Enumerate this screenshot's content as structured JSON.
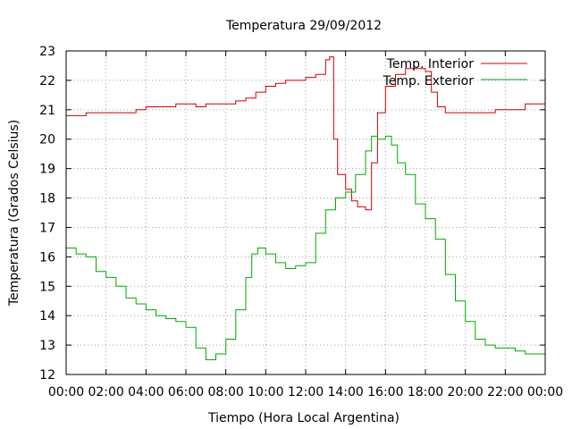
{
  "chart_data": {
    "type": "line",
    "title": "Temperatura 29/09/2012",
    "xlabel": "Tiempo (Hora Local Argentina)",
    "ylabel": "Temperatura (Grados Celsius)",
    "xlim": [
      0,
      24
    ],
    "ylim": [
      12,
      23
    ],
    "x_ticks": [
      "00:00",
      "02:00",
      "04:00",
      "06:00",
      "08:00",
      "10:00",
      "12:00",
      "14:00",
      "16:00",
      "18:00",
      "20:00",
      "22:00",
      "00:00"
    ],
    "y_ticks": [
      "12",
      "13",
      "14",
      "15",
      "16",
      "17",
      "18",
      "19",
      "20",
      "21",
      "22",
      "23"
    ],
    "grid": true,
    "legend_position": "top-right",
    "series": [
      {
        "name": "Temp. Interior",
        "color": "#cc0000",
        "x": [
          0,
          0.5,
          1,
          1.5,
          2,
          2.5,
          3,
          3.5,
          4,
          4.5,
          5,
          5.5,
          6,
          6.5,
          7,
          7.5,
          8,
          8.5,
          9,
          9.5,
          10,
          10.5,
          11,
          11.5,
          12,
          12.5,
          13,
          13.2,
          13.4,
          13.6,
          14,
          14.3,
          14.6,
          15,
          15.3,
          15.6,
          16,
          16.5,
          17,
          17.5,
          18,
          18.3,
          18.6,
          19,
          19.5,
          20,
          20.5,
          21,
          21.5,
          22,
          22.5,
          23,
          23.5,
          24
        ],
        "y": [
          20.8,
          20.8,
          20.9,
          20.9,
          20.9,
          20.9,
          20.9,
          21.0,
          21.1,
          21.1,
          21.1,
          21.2,
          21.2,
          21.1,
          21.2,
          21.2,
          21.2,
          21.3,
          21.4,
          21.6,
          21.8,
          21.9,
          22.0,
          22.0,
          22.1,
          22.2,
          22.7,
          22.8,
          20.0,
          18.8,
          18.3,
          17.9,
          17.7,
          17.6,
          19.2,
          20.9,
          21.8,
          22.2,
          22.4,
          22.4,
          22.3,
          21.6,
          21.1,
          20.9,
          20.9,
          20.9,
          20.9,
          20.9,
          21.0,
          21.0,
          21.0,
          21.2,
          21.2,
          21.2
        ]
      },
      {
        "name": "Temp. Exterior",
        "color": "#00aa00",
        "x": [
          0,
          0.5,
          1,
          1.5,
          2,
          2.5,
          3,
          3.5,
          4,
          4.5,
          5,
          5.5,
          6,
          6.5,
          7,
          7.5,
          8,
          8.5,
          9,
          9.3,
          9.6,
          10,
          10.5,
          11,
          11.5,
          12,
          12.5,
          13,
          13.5,
          14,
          14.5,
          15,
          15.3,
          15.6,
          16,
          16.3,
          16.6,
          17,
          17.5,
          18,
          18.5,
          19,
          19.5,
          20,
          20.5,
          21,
          21.5,
          22,
          22.5,
          23,
          23.5,
          24
        ],
        "y": [
          16.3,
          16.1,
          16.0,
          15.5,
          15.3,
          15.0,
          14.6,
          14.4,
          14.2,
          14.0,
          13.9,
          13.8,
          13.6,
          12.9,
          12.5,
          12.7,
          13.2,
          14.2,
          15.3,
          16.1,
          16.3,
          16.1,
          15.8,
          15.6,
          15.7,
          15.8,
          16.8,
          17.6,
          18.0,
          18.2,
          18.8,
          19.6,
          20.1,
          20.0,
          20.1,
          19.8,
          19.2,
          18.8,
          17.8,
          17.3,
          16.6,
          15.4,
          14.5,
          13.8,
          13.2,
          13.0,
          12.9,
          12.9,
          12.8,
          12.7,
          12.7,
          13.0
        ]
      }
    ]
  }
}
